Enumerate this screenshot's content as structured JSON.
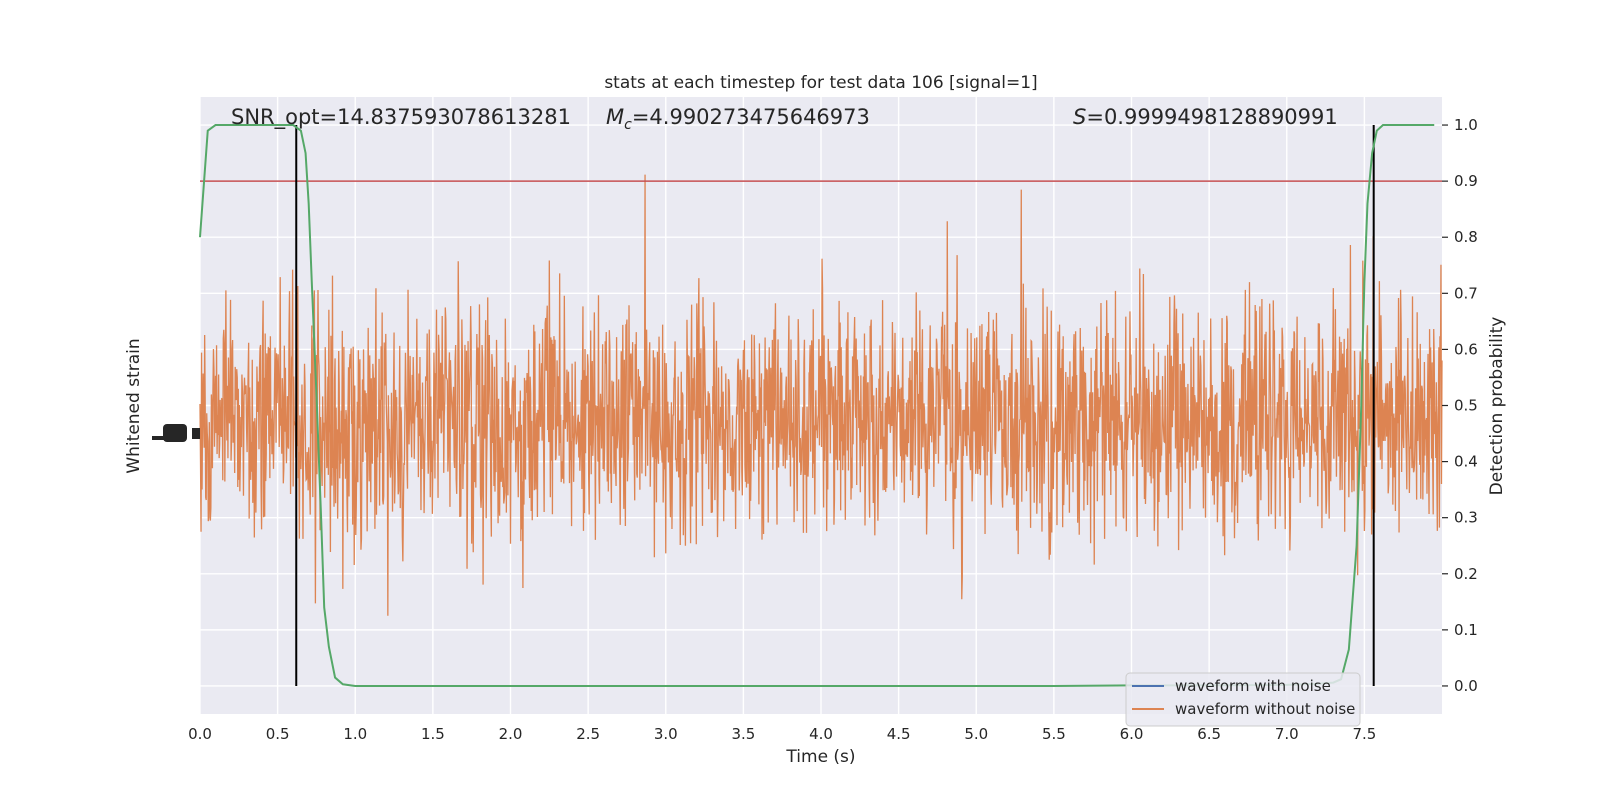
{
  "chart_data": {
    "type": "line",
    "title": "stats at each timestep for test data 106 [signal=1]",
    "xlabel": "Time (s)",
    "ylabel_left": "Whitened strain",
    "ylabel_right": "Detection probability",
    "xlim": [
      0.0,
      8.0
    ],
    "ylim_right": [
      -0.05,
      1.05
    ],
    "grid": true,
    "x_ticks": [
      "0.0",
      "0.5",
      "1.0",
      "1.5",
      "2.0",
      "2.5",
      "3.0",
      "3.5",
      "4.0",
      "4.5",
      "5.0",
      "5.5",
      "6.0",
      "6.5",
      "7.0",
      "7.5"
    ],
    "x_tick_values": [
      0.0,
      0.5,
      1.0,
      1.5,
      2.0,
      2.5,
      3.0,
      3.5,
      4.0,
      4.5,
      5.0,
      5.5,
      6.0,
      6.5,
      7.0,
      7.5
    ],
    "y_right_ticks": [
      "0.0",
      "0.1",
      "0.2",
      "0.3",
      "0.4",
      "0.5",
      "0.6",
      "0.7",
      "0.8",
      "0.9",
      "1.0"
    ],
    "y_right_tick_values": [
      0.0,
      0.1,
      0.2,
      0.3,
      0.4,
      0.5,
      0.6,
      0.7,
      0.8,
      0.9,
      1.0
    ],
    "annotations": {
      "snr": "SNR_opt=14.837593078613281",
      "mc_symbol": "M",
      "mc_sub": "c",
      "mc_value": "=4.990273475646973",
      "s_symbol": "S",
      "s_value": "=0.9999498128890991"
    },
    "threshold": 0.9,
    "vlines": [
      0.62,
      7.56
    ],
    "detection_probability": {
      "x": [
        0.0,
        0.05,
        0.1,
        0.15,
        0.2,
        0.3,
        0.4,
        0.5,
        0.55,
        0.6,
        0.65,
        0.68,
        0.7,
        0.72,
        0.75,
        0.78,
        0.8,
        0.83,
        0.87,
        0.92,
        1.0,
        1.5,
        2.0,
        2.5,
        3.0,
        3.5,
        4.0,
        4.5,
        5.0,
        5.5,
        6.0,
        6.5,
        7.0,
        7.2,
        7.3,
        7.35,
        7.4,
        7.45,
        7.48,
        7.5,
        7.52,
        7.55,
        7.58,
        7.62,
        7.65,
        7.7,
        7.75,
        7.8,
        7.85,
        7.9,
        7.95
      ],
      "y": [
        0.8,
        0.99,
        1.0,
        1.0,
        1.0,
        1.0,
        1.0,
        1.0,
        1.0,
        1.0,
        0.99,
        0.95,
        0.86,
        0.72,
        0.52,
        0.3,
        0.14,
        0.07,
        0.015,
        0.003,
        0.0,
        0.0,
        0.0,
        0.0,
        0.0,
        0.0,
        0.0,
        0.0,
        0.0,
        0.0,
        0.001,
        0.001,
        0.002,
        0.004,
        0.006,
        0.012,
        0.065,
        0.25,
        0.5,
        0.72,
        0.86,
        0.95,
        0.99,
        1.0,
        1.0,
        1.0,
        1.0,
        1.0,
        1.0,
        1.0,
        1.0
      ]
    },
    "series": [
      {
        "name": "waveform with noise",
        "color": "#4c72b0"
      },
      {
        "name": "waveform without noise",
        "color": "#dd8452"
      }
    ],
    "probability_color": "#55a868",
    "threshold_color": "#c44e52"
  }
}
